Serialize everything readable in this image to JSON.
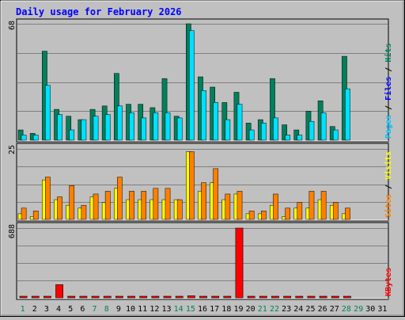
{
  "title": "Daily usage for February 2026",
  "colors": {
    "background": "#c0c0c0",
    "plot": "#c0c0c0",
    "grid": "#808080",
    "title": "#0000ff",
    "hits": "#00805c",
    "files": "#00e0ff",
    "pages": "#00c0ff",
    "visits": "#ffff00",
    "sites": "#ff8000",
    "kbytes": "#ff0000",
    "weekday": "#000000",
    "weekend": "#00805c"
  },
  "chart_data": [
    {
      "type": "bar",
      "name": "hits-files-pages",
      "categories": [
        "1",
        "2",
        "3",
        "4",
        "5",
        "6",
        "7",
        "8",
        "9",
        "10",
        "11",
        "12",
        "13",
        "14",
        "15",
        "16",
        "17",
        "18",
        "19",
        "20",
        "21",
        "22",
        "23",
        "24",
        "25",
        "26",
        "27",
        "28",
        "29",
        "30",
        "31"
      ],
      "ylim": [
        0,
        68
      ],
      "max_label": "68",
      "axis_label_parts": [
        {
          "text": "Pages",
          "color": "#00c0ff"
        },
        {
          "text": " / ",
          "color": "#000000"
        },
        {
          "text": "Files",
          "color": "#0000ff"
        },
        {
          "text": " / ",
          "color": "#000000"
        },
        {
          "text": "Hits",
          "color": "#00805c"
        }
      ],
      "series": [
        {
          "name": "Hits",
          "color": "#00805c",
          "values": [
            6,
            4,
            52,
            18,
            14,
            12,
            18,
            20,
            39,
            21,
            21,
            19,
            36,
            14,
            68,
            37,
            31,
            22,
            28,
            10,
            12,
            36,
            9,
            6,
            17,
            23,
            8,
            49,
            0,
            0,
            0
          ]
        },
        {
          "name": "Files",
          "color": "#00e0ff",
          "values": [
            3,
            3,
            32,
            15,
            6,
            12,
            14,
            15,
            20,
            16,
            13,
            16,
            16,
            13,
            64,
            29,
            22,
            12,
            21,
            6,
            10,
            13,
            3,
            3,
            11,
            16,
            6,
            30,
            0,
            0,
            0
          ]
        }
      ]
    },
    {
      "type": "bar",
      "name": "visits-sites",
      "categories": [
        "1",
        "2",
        "3",
        "4",
        "5",
        "6",
        "7",
        "8",
        "9",
        "10",
        "11",
        "12",
        "13",
        "14",
        "15",
        "16",
        "17",
        "18",
        "19",
        "20",
        "21",
        "22",
        "23",
        "24",
        "25",
        "26",
        "27",
        "28",
        "29",
        "30",
        "31"
      ],
      "ylim": [
        0,
        25
      ],
      "max_label": "25",
      "axis_label_parts": [
        {
          "text": "Sites",
          "color": "#ff8000"
        },
        {
          "text": " / ",
          "color": "#000000"
        },
        {
          "text": "Visits",
          "color": "#ffff00"
        }
      ],
      "series": [
        {
          "name": "Visits",
          "color": "#ffff00",
          "values": [
            2,
            1,
            14,
            7,
            5,
            4,
            8,
            6,
            11,
            7,
            7,
            7,
            7,
            7,
            24,
            10,
            13,
            7,
            9,
            2,
            2,
            5,
            1,
            4,
            4,
            7,
            5,
            2,
            0,
            0,
            0
          ]
        },
        {
          "name": "Sites",
          "color": "#ff8000",
          "values": [
            4,
            3,
            15,
            8,
            12,
            5,
            9,
            10,
            15,
            10,
            10,
            11,
            11,
            7,
            24,
            13,
            18,
            9,
            10,
            3,
            3,
            9,
            4,
            6,
            10,
            10,
            6,
            4,
            0,
            0,
            0
          ]
        }
      ]
    },
    {
      "type": "bar",
      "name": "kbytes",
      "categories": [
        "1",
        "2",
        "3",
        "4",
        "5",
        "6",
        "7",
        "8",
        "9",
        "10",
        "11",
        "12",
        "13",
        "14",
        "15",
        "16",
        "17",
        "18",
        "19",
        "20",
        "21",
        "22",
        "23",
        "24",
        "25",
        "26",
        "27",
        "28",
        "29",
        "30",
        "31"
      ],
      "ylim": [
        0,
        688
      ],
      "max_label": "688",
      "axis_label_parts": [
        {
          "text": "KBytes",
          "color": "#ff0000"
        }
      ],
      "series": [
        {
          "name": "KBytes",
          "color": "#ff0000",
          "values": [
            10,
            10,
            10,
            130,
            10,
            10,
            10,
            10,
            10,
            10,
            10,
            10,
            10,
            10,
            20,
            10,
            10,
            10,
            688,
            10,
            10,
            10,
            10,
            10,
            10,
            10,
            10,
            10,
            0,
            0,
            0
          ]
        }
      ]
    }
  ],
  "weekend_days": [
    "1",
    "7",
    "8",
    "14",
    "15",
    "21",
    "22",
    "28",
    "29"
  ]
}
